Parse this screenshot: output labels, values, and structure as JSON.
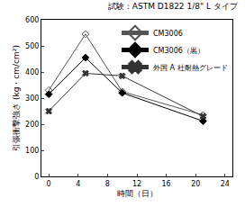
{
  "chart_data": {
    "type": "line",
    "title": "試験：ASTM D1822 1/8\" L タイプ",
    "x_label": "時間（日）",
    "y_label": "引張衝撃強さ (kg・cm/cm²)",
    "xlim": [
      -1,
      25
    ],
    "xticks": [
      0,
      4,
      8,
      12,
      16,
      20,
      24
    ],
    "ylim": [
      0,
      600
    ],
    "yticks": [
      0,
      100,
      200,
      300,
      400,
      500,
      600
    ],
    "grid": false,
    "legend": "top right",
    "series": [
      {
        "name": "CM3006",
        "color": "#555555",
        "marker": "diamond-open",
        "x": [
          0,
          5,
          10,
          21
        ],
        "values": [
          330,
          545,
          325,
          235
        ]
      },
      {
        "name": "CM3006（黒）",
        "color": "#000000",
        "marker": "diamond",
        "x": [
          0,
          5,
          10,
          21
        ],
        "values": [
          315,
          455,
          320,
          212
        ]
      },
      {
        "name": "外国 A 社耐熱グレード",
        "color": "#333333",
        "marker": "x",
        "x": [
          0,
          5,
          10,
          21
        ],
        "values": [
          250,
          395,
          385,
          230
        ]
      }
    ]
  }
}
